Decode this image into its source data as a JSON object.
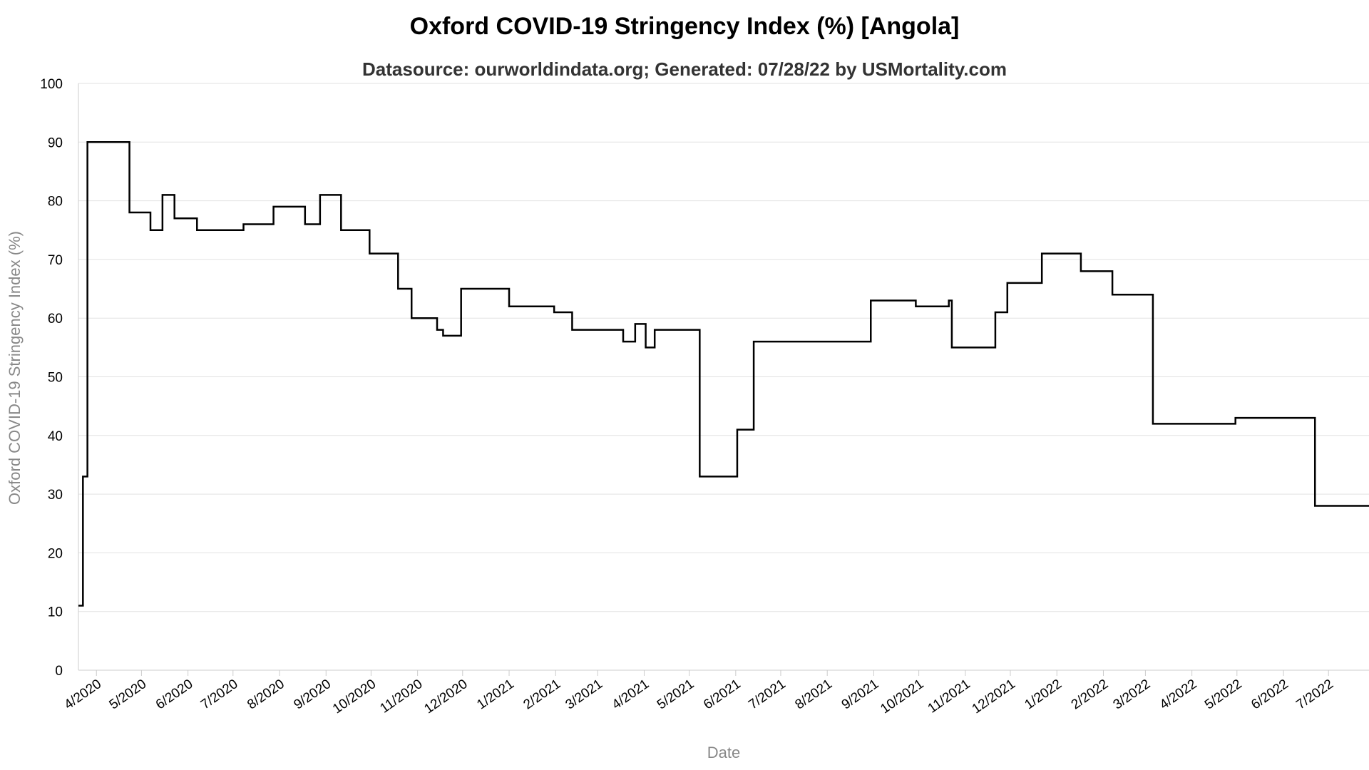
{
  "chart_data": {
    "type": "line",
    "title": "Oxford COVID-19 Stringency Index (%) [Angola]",
    "subtitle": "Datasource: ourworldindata.org; Generated: 07/28/22 by USMortality.com",
    "xlabel": "Date",
    "ylabel": "Oxford COVID-19 Stringency Index (%)",
    "ylim": [
      0,
      100
    ],
    "yticks": [
      0,
      10,
      20,
      30,
      40,
      50,
      60,
      70,
      80,
      90,
      100
    ],
    "xlim": [
      "2020-03-20",
      "2022-07-28"
    ],
    "xticks": [
      {
        "date": "2020-04-01",
        "label": "4/2020"
      },
      {
        "date": "2020-05-01",
        "label": "5/2020"
      },
      {
        "date": "2020-06-01",
        "label": "6/2020"
      },
      {
        "date": "2020-07-01",
        "label": "7/2020"
      },
      {
        "date": "2020-08-01",
        "label": "8/2020"
      },
      {
        "date": "2020-09-01",
        "label": "9/2020"
      },
      {
        "date": "2020-10-01",
        "label": "10/2020"
      },
      {
        "date": "2020-11-01",
        "label": "11/2020"
      },
      {
        "date": "2020-12-01",
        "label": "12/2020"
      },
      {
        "date": "2021-01-01",
        "label": "1/2021"
      },
      {
        "date": "2021-02-01",
        "label": "2/2021"
      },
      {
        "date": "2021-03-01",
        "label": "3/2021"
      },
      {
        "date": "2021-04-01",
        "label": "4/2021"
      },
      {
        "date": "2021-05-01",
        "label": "5/2021"
      },
      {
        "date": "2021-06-01",
        "label": "6/2021"
      },
      {
        "date": "2021-07-01",
        "label": "7/2021"
      },
      {
        "date": "2021-08-01",
        "label": "8/2021"
      },
      {
        "date": "2021-09-01",
        "label": "9/2021"
      },
      {
        "date": "2021-10-01",
        "label": "10/2021"
      },
      {
        "date": "2021-11-01",
        "label": "11/2021"
      },
      {
        "date": "2021-12-01",
        "label": "12/2021"
      },
      {
        "date": "2022-01-01",
        "label": "1/2022"
      },
      {
        "date": "2022-02-01",
        "label": "2/2022"
      },
      {
        "date": "2022-03-01",
        "label": "3/2022"
      },
      {
        "date": "2022-04-01",
        "label": "4/2022"
      },
      {
        "date": "2022-05-01",
        "label": "5/2022"
      },
      {
        "date": "2022-06-01",
        "label": "6/2022"
      },
      {
        "date": "2022-07-01",
        "label": "7/2022"
      }
    ],
    "grid": true,
    "line_color": "#000000",
    "series": [
      {
        "step": true,
        "points": [
          [
            "2020-03-20",
            11
          ],
          [
            "2020-03-22",
            11
          ],
          [
            "2020-03-23",
            33
          ],
          [
            "2020-03-25",
            33
          ],
          [
            "2020-03-26",
            90
          ],
          [
            "2020-04-22",
            90
          ],
          [
            "2020-04-23",
            78
          ],
          [
            "2020-05-07",
            75
          ],
          [
            "2020-05-15",
            81
          ],
          [
            "2020-05-23",
            77
          ],
          [
            "2020-06-07",
            75
          ],
          [
            "2020-07-08",
            76
          ],
          [
            "2020-07-28",
            79
          ],
          [
            "2020-08-18",
            76
          ],
          [
            "2020-08-28",
            81
          ],
          [
            "2020-09-11",
            75
          ],
          [
            "2020-09-30",
            71
          ],
          [
            "2020-10-19",
            65
          ],
          [
            "2020-10-28",
            60
          ],
          [
            "2020-11-14",
            58
          ],
          [
            "2020-11-18",
            57
          ],
          [
            "2020-11-30",
            65
          ],
          [
            "2021-01-01",
            62
          ],
          [
            "2021-01-31",
            61
          ],
          [
            "2021-02-12",
            58
          ],
          [
            "2021-03-18",
            56
          ],
          [
            "2021-03-26",
            59
          ],
          [
            "2021-04-02",
            55
          ],
          [
            "2021-04-08",
            58
          ],
          [
            "2021-05-08",
            33
          ],
          [
            "2021-06-02",
            41
          ],
          [
            "2021-06-13",
            56
          ],
          [
            "2021-08-30",
            63
          ],
          [
            "2021-09-29",
            62
          ],
          [
            "2021-10-21",
            63
          ],
          [
            "2021-10-23",
            55
          ],
          [
            "2021-11-21",
            61
          ],
          [
            "2021-11-29",
            66
          ],
          [
            "2021-12-22",
            71
          ],
          [
            "2022-01-17",
            68
          ],
          [
            "2022-02-07",
            64
          ],
          [
            "2022-03-06",
            42
          ],
          [
            "2022-04-30",
            43
          ],
          [
            "2022-06-22",
            28
          ],
          [
            "2022-07-28",
            28
          ]
        ]
      }
    ]
  }
}
